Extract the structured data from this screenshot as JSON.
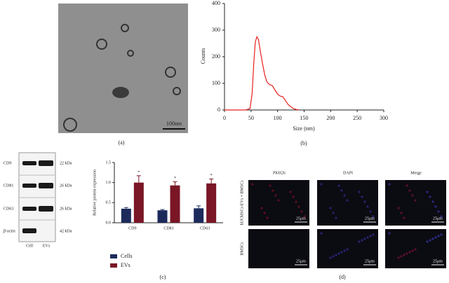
{
  "panels": {
    "a": {
      "label": "(a)",
      "scale_bar": "100nm"
    },
    "b": {
      "label": "(b)"
    },
    "blot": {
      "proteins": [
        "CD9",
        "CD81",
        "CD63",
        "β-actin"
      ],
      "weights": [
        "22 kDa",
        "26 kDa",
        "26 kDa",
        "42 kDa"
      ],
      "lanes": [
        "Cell",
        "EVs"
      ]
    },
    "c": {
      "label": "(c)"
    },
    "d": {
      "label": "(d)",
      "columns": [
        "PKH26",
        "DAPI",
        "Merge"
      ],
      "rows": [
        "hUCMSCs-EVs + BMSCs",
        "BMSCs"
      ],
      "scale_bar": "25μm"
    }
  },
  "chart_data": [
    {
      "type": "line",
      "x_label": "Size (nm)",
      "y_label": "Counts",
      "x": [
        0,
        40,
        48,
        52,
        55,
        58,
        61,
        64,
        68,
        72,
        76,
        80,
        85,
        90,
        95,
        100,
        105,
        110,
        115,
        120,
        125,
        130,
        135,
        140
      ],
      "series": [
        {
          "color": "#e8201e",
          "values": [
            0,
            0,
            5,
            60,
            170,
            255,
            275,
            265,
            215,
            170,
            130,
            105,
            95,
            92,
            75,
            60,
            52,
            50,
            35,
            20,
            12,
            5,
            2,
            0
          ]
        }
      ],
      "xlim": [
        0,
        300
      ],
      "xticks": [
        0,
        50,
        100,
        150,
        200,
        250,
        300
      ],
      "ylim": [
        0,
        400
      ],
      "yticks": [
        0,
        100,
        200,
        300,
        400
      ]
    },
    {
      "type": "bar",
      "y_label": "Relative protein expression",
      "categories": [
        "CD9",
        "CD81",
        "CD63"
      ],
      "series": [
        {
          "name": "Cells",
          "color": "#1c2a5c",
          "values": [
            0.35,
            0.31,
            0.36
          ],
          "errors": [
            0.03,
            0.02,
            0.06
          ]
        },
        {
          "name": "EVs",
          "color": "#7a1626",
          "values": [
            1.0,
            0.93,
            0.98
          ],
          "errors": [
            0.17,
            0.09,
            0.11
          ]
        }
      ],
      "annotations": [
        "*",
        "*",
        "*"
      ],
      "ylim": [
        0,
        1.5
      ],
      "yticks": [
        {
          "value": 0,
          "label": "0.0"
        },
        {
          "value": 0.5,
          "label": "0.5"
        },
        {
          "value": 1,
          "label": "1.0"
        },
        {
          "value": 1.5,
          "label": "1.5"
        }
      ]
    }
  ]
}
